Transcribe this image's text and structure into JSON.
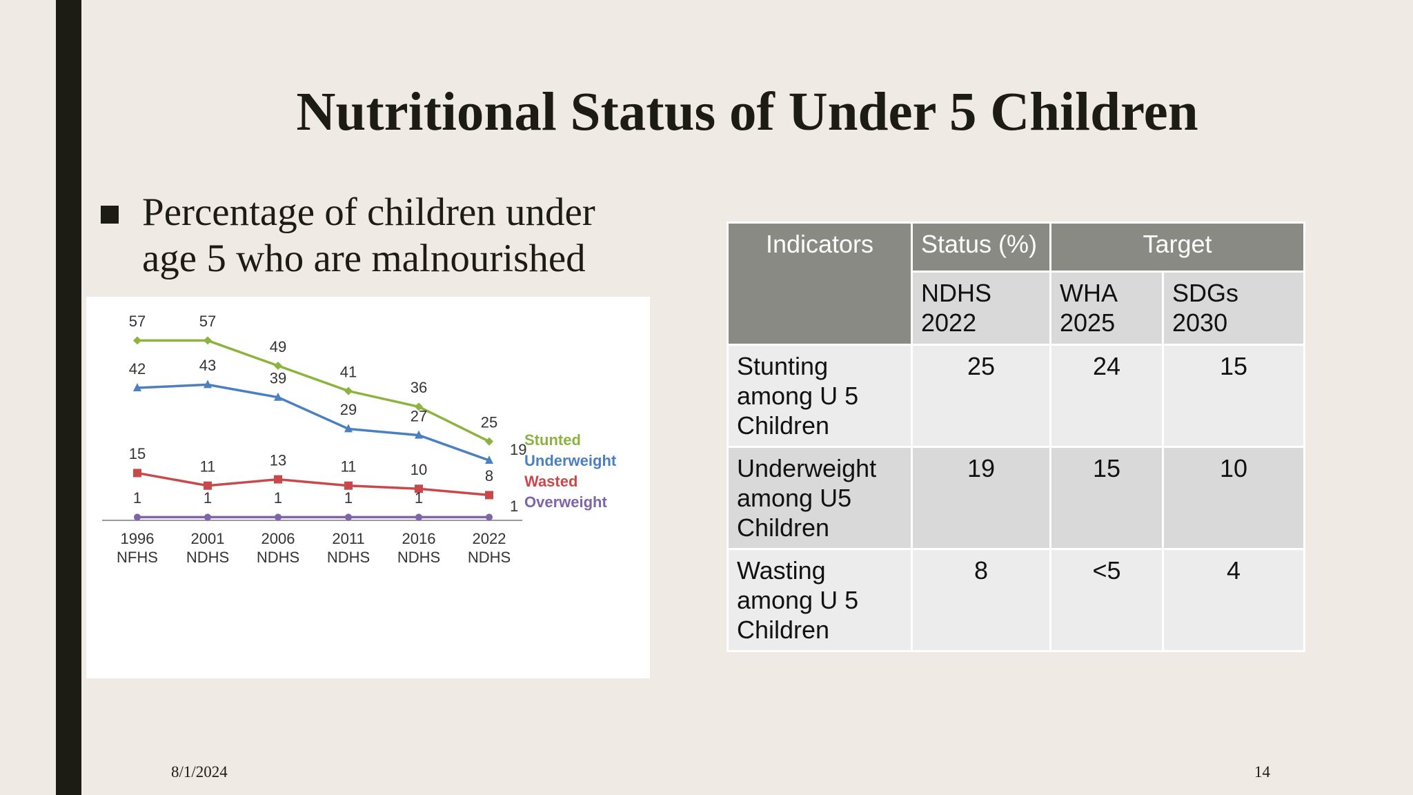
{
  "slide": {
    "title": "Nutritional Status of Under 5 Children",
    "bullet": "Percentage of children under age 5 who are malnourished"
  },
  "chart_data": {
    "type": "line",
    "categories": [
      [
        "1996",
        "NFHS"
      ],
      [
        "2001",
        "NDHS"
      ],
      [
        "2006",
        "NDHS"
      ],
      [
        "2011",
        "NDHS"
      ],
      [
        "2016",
        "NDHS"
      ],
      [
        "2022",
        "NDHS"
      ]
    ],
    "ylim": [
      0,
      70
    ],
    "series": [
      {
        "name": "Stunted",
        "color": "#8db33f",
        "marker": "diamond",
        "values": [
          57,
          57,
          49,
          41,
          36,
          25
        ]
      },
      {
        "name": "Underweight",
        "color": "#4a7fc1",
        "marker": "triangle",
        "values": [
          42,
          43,
          39,
          29,
          27,
          19
        ]
      },
      {
        "name": "Wasted",
        "color": "#c9484a",
        "marker": "square",
        "values": [
          15,
          11,
          13,
          11,
          10,
          8
        ]
      },
      {
        "name": "Overweight",
        "color": "#7f64a8",
        "marker": "circle",
        "values": [
          1,
          1,
          1,
          1,
          1,
          1
        ]
      }
    ]
  },
  "table": {
    "header": [
      "Indicators",
      "Status (%)",
      "Target"
    ],
    "subheader": [
      "NDHS 2022",
      "WHA 2025",
      "SDGs 2030"
    ],
    "rows": [
      [
        "Stunting among U 5 Children",
        25,
        24,
        15
      ],
      [
        "Underweight among U5 Children",
        19,
        15,
        10
      ],
      [
        "Wasting among U 5 Children",
        8,
        "<5",
        4
      ]
    ]
  },
  "footer": {
    "date": "8/1/2024",
    "page": "14"
  }
}
